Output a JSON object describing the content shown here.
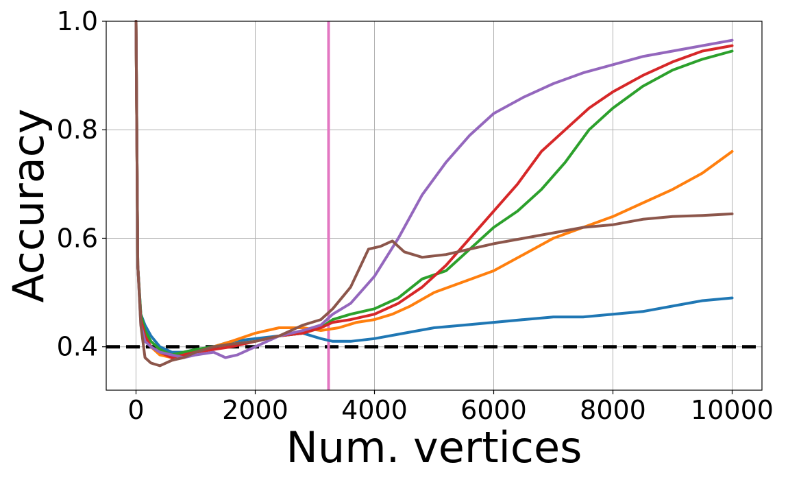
{
  "chart_data": {
    "type": "line",
    "title": "",
    "xlabel": "Num. vertices",
    "ylabel": "Accuracy",
    "xlim": [
      -500,
      10500
    ],
    "ylim": [
      0.32,
      1.0
    ],
    "xticks": [
      0,
      2000,
      4000,
      6000,
      8000,
      10000
    ],
    "xtick_labels": [
      "0",
      "2000",
      "4000",
      "6000",
      "8000",
      "10000"
    ],
    "yticks": [
      0.4,
      0.6,
      0.8,
      1.0
    ],
    "ytick_labels": [
      "0.4",
      "0.6",
      "0.8",
      "1.0"
    ],
    "grid": true,
    "legend": "none",
    "reference_lines": [
      {
        "orientation": "horizontal",
        "value": 0.4,
        "style": "dashed",
        "color": "#000000"
      },
      {
        "orientation": "vertical",
        "value": 3230,
        "style": "solid",
        "color": "#e377c2"
      }
    ],
    "series": [
      {
        "color": "#1f77b4",
        "points": [
          [
            0,
            1.0
          ],
          [
            30,
            0.55
          ],
          [
            80,
            0.46
          ],
          [
            150,
            0.44
          ],
          [
            250,
            0.42
          ],
          [
            400,
            0.4
          ],
          [
            600,
            0.39
          ],
          [
            800,
            0.39
          ],
          [
            1000,
            0.395
          ],
          [
            1300,
            0.4
          ],
          [
            1600,
            0.41
          ],
          [
            2000,
            0.415
          ],
          [
            2400,
            0.42
          ],
          [
            2800,
            0.425
          ],
          [
            3100,
            0.415
          ],
          [
            3300,
            0.41
          ],
          [
            3600,
            0.41
          ],
          [
            4000,
            0.415
          ],
          [
            4500,
            0.425
          ],
          [
            5000,
            0.435
          ],
          [
            5500,
            0.44
          ],
          [
            6000,
            0.445
          ],
          [
            6500,
            0.45
          ],
          [
            7000,
            0.455
          ],
          [
            7500,
            0.455
          ],
          [
            8000,
            0.46
          ],
          [
            8500,
            0.465
          ],
          [
            9000,
            0.475
          ],
          [
            9500,
            0.485
          ],
          [
            10000,
            0.49
          ]
        ]
      },
      {
        "color": "#ff7f0e",
        "points": [
          [
            0,
            1.0
          ],
          [
            30,
            0.55
          ],
          [
            80,
            0.45
          ],
          [
            150,
            0.42
          ],
          [
            250,
            0.4
          ],
          [
            400,
            0.385
          ],
          [
            600,
            0.38
          ],
          [
            800,
            0.385
          ],
          [
            1000,
            0.39
          ],
          [
            1300,
            0.4
          ],
          [
            1600,
            0.41
          ],
          [
            2000,
            0.425
          ],
          [
            2400,
            0.435
          ],
          [
            2800,
            0.435
          ],
          [
            3100,
            0.43
          ],
          [
            3400,
            0.435
          ],
          [
            3700,
            0.445
          ],
          [
            4000,
            0.45
          ],
          [
            4300,
            0.46
          ],
          [
            4600,
            0.475
          ],
          [
            5000,
            0.5
          ],
          [
            5500,
            0.52
          ],
          [
            6000,
            0.54
          ],
          [
            6500,
            0.57
          ],
          [
            7000,
            0.6
          ],
          [
            7500,
            0.62
          ],
          [
            8000,
            0.64
          ],
          [
            8500,
            0.665
          ],
          [
            9000,
            0.69
          ],
          [
            9500,
            0.72
          ],
          [
            10000,
            0.76
          ]
        ]
      },
      {
        "color": "#2ca02c",
        "points": [
          [
            0,
            1.0
          ],
          [
            30,
            0.55
          ],
          [
            80,
            0.46
          ],
          [
            150,
            0.43
          ],
          [
            250,
            0.41
          ],
          [
            400,
            0.395
          ],
          [
            600,
            0.385
          ],
          [
            800,
            0.39
          ],
          [
            1000,
            0.395
          ],
          [
            1300,
            0.4
          ],
          [
            1600,
            0.405
          ],
          [
            2000,
            0.41
          ],
          [
            2400,
            0.42
          ],
          [
            2800,
            0.425
          ],
          [
            3100,
            0.435
          ],
          [
            3300,
            0.45
          ],
          [
            3600,
            0.46
          ],
          [
            4000,
            0.47
          ],
          [
            4400,
            0.49
          ],
          [
            4800,
            0.525
          ],
          [
            5200,
            0.54
          ],
          [
            5600,
            0.58
          ],
          [
            6000,
            0.62
          ],
          [
            6400,
            0.65
          ],
          [
            6800,
            0.69
          ],
          [
            7200,
            0.74
          ],
          [
            7600,
            0.8
          ],
          [
            8000,
            0.84
          ],
          [
            8500,
            0.88
          ],
          [
            9000,
            0.91
          ],
          [
            9500,
            0.93
          ],
          [
            10000,
            0.945
          ]
        ]
      },
      {
        "color": "#d62728",
        "points": [
          [
            0,
            1.0
          ],
          [
            30,
            0.55
          ],
          [
            80,
            0.45
          ],
          [
            150,
            0.42
          ],
          [
            250,
            0.4
          ],
          [
            400,
            0.39
          ],
          [
            600,
            0.38
          ],
          [
            800,
            0.385
          ],
          [
            1000,
            0.39
          ],
          [
            1300,
            0.395
          ],
          [
            1600,
            0.4
          ],
          [
            2000,
            0.41
          ],
          [
            2400,
            0.42
          ],
          [
            2800,
            0.425
          ],
          [
            3100,
            0.435
          ],
          [
            3300,
            0.445
          ],
          [
            3600,
            0.45
          ],
          [
            4000,
            0.46
          ],
          [
            4400,
            0.48
          ],
          [
            4800,
            0.51
          ],
          [
            5200,
            0.55
          ],
          [
            5600,
            0.6
          ],
          [
            6000,
            0.65
          ],
          [
            6400,
            0.7
          ],
          [
            6800,
            0.76
          ],
          [
            7200,
            0.8
          ],
          [
            7600,
            0.84
          ],
          [
            8000,
            0.87
          ],
          [
            8500,
            0.9
          ],
          [
            9000,
            0.925
          ],
          [
            9500,
            0.945
          ],
          [
            10000,
            0.955
          ]
        ]
      },
      {
        "color": "#9467bd",
        "points": [
          [
            0,
            1.0
          ],
          [
            30,
            0.55
          ],
          [
            80,
            0.44
          ],
          [
            150,
            0.41
          ],
          [
            250,
            0.4
          ],
          [
            400,
            0.39
          ],
          [
            600,
            0.385
          ],
          [
            800,
            0.38
          ],
          [
            1000,
            0.385
          ],
          [
            1300,
            0.39
          ],
          [
            1500,
            0.38
          ],
          [
            1700,
            0.385
          ],
          [
            2000,
            0.4
          ],
          [
            2400,
            0.42
          ],
          [
            2800,
            0.43
          ],
          [
            3100,
            0.44
          ],
          [
            3300,
            0.46
          ],
          [
            3600,
            0.48
          ],
          [
            4000,
            0.53
          ],
          [
            4400,
            0.6
          ],
          [
            4800,
            0.68
          ],
          [
            5200,
            0.74
          ],
          [
            5600,
            0.79
          ],
          [
            6000,
            0.83
          ],
          [
            6500,
            0.86
          ],
          [
            7000,
            0.885
          ],
          [
            7500,
            0.905
          ],
          [
            8000,
            0.92
          ],
          [
            8500,
            0.935
          ],
          [
            9000,
            0.945
          ],
          [
            9500,
            0.955
          ],
          [
            10000,
            0.965
          ]
        ]
      },
      {
        "color": "#8c564b",
        "points": [
          [
            0,
            1.0
          ],
          [
            30,
            0.55
          ],
          [
            80,
            0.44
          ],
          [
            150,
            0.38
          ],
          [
            250,
            0.37
          ],
          [
            400,
            0.365
          ],
          [
            600,
            0.375
          ],
          [
            800,
            0.38
          ],
          [
            1000,
            0.39
          ],
          [
            1300,
            0.4
          ],
          [
            1600,
            0.405
          ],
          [
            2000,
            0.41
          ],
          [
            2400,
            0.42
          ],
          [
            2800,
            0.44
          ],
          [
            3100,
            0.45
          ],
          [
            3300,
            0.47
          ],
          [
            3600,
            0.51
          ],
          [
            3900,
            0.58
          ],
          [
            4100,
            0.585
          ],
          [
            4300,
            0.595
          ],
          [
            4500,
            0.575
          ],
          [
            4800,
            0.565
          ],
          [
            5200,
            0.57
          ],
          [
            5600,
            0.58
          ],
          [
            6000,
            0.59
          ],
          [
            6500,
            0.6
          ],
          [
            7000,
            0.61
          ],
          [
            7500,
            0.62
          ],
          [
            8000,
            0.625
          ],
          [
            8500,
            0.635
          ],
          [
            9000,
            0.64
          ],
          [
            9500,
            0.642
          ],
          [
            10000,
            0.645
          ]
        ]
      }
    ]
  }
}
